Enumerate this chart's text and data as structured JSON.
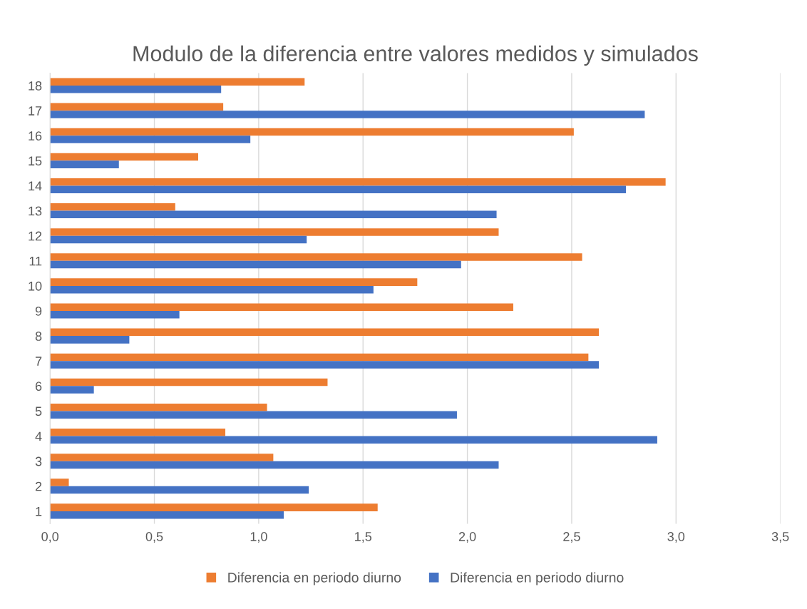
{
  "chart_data": {
    "type": "bar",
    "orientation": "horizontal",
    "title": "Modulo de la diferencia entre valores medidos y simulados",
    "categories": [
      "18",
      "17",
      "16",
      "15",
      "14",
      "13",
      "12",
      "11",
      "10",
      "9",
      "8",
      "7",
      "6",
      "5",
      "4",
      "3",
      "2",
      "1"
    ],
    "series": [
      {
        "name": "Diferencia en periodo diurno",
        "color": "#ed7d31",
        "values": [
          1.22,
          0.83,
          2.51,
          0.71,
          2.95,
          0.6,
          2.15,
          2.55,
          1.76,
          2.22,
          2.63,
          2.58,
          1.33,
          1.04,
          0.84,
          1.07,
          0.09,
          1.57
        ]
      },
      {
        "name": "Diferencia en periodo diurno",
        "color": "#4472c4",
        "values": [
          0.82,
          2.85,
          0.96,
          0.33,
          2.76,
          2.14,
          1.23,
          1.97,
          1.55,
          0.62,
          0.38,
          2.63,
          0.21,
          1.95,
          2.91,
          2.15,
          1.24,
          1.12
        ]
      }
    ],
    "xlim": [
      0,
      3.5
    ],
    "xticks": [
      {
        "value": 0,
        "label": "0,0"
      },
      {
        "value": 0.5,
        "label": "0,5"
      },
      {
        "value": 1,
        "label": "1,0"
      },
      {
        "value": 1.5,
        "label": "1,5"
      },
      {
        "value": 2,
        "label": "2,0"
      },
      {
        "value": 2.5,
        "label": "2,5"
      },
      {
        "value": 3,
        "label": "3,0"
      },
      {
        "value": 3.5,
        "label": "3,5"
      }
    ],
    "grid": "x",
    "legend": "bottom"
  }
}
